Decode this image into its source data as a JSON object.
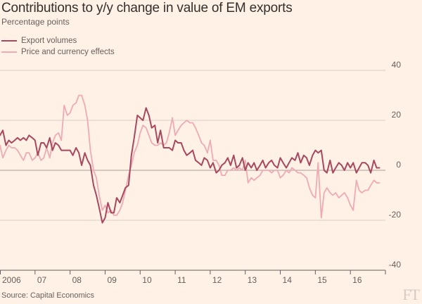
{
  "title": "Contributions to y/y change in value of EM exports",
  "subtitle": "Percentage points",
  "source": "Source: Capital Economics",
  "brand": "FT",
  "colors": {
    "background": "#fff1e5",
    "export_volumes": "#a8485f",
    "price_effects": "#efaab3",
    "grid": "#d9cfc6",
    "zero_line": "#a89f98"
  },
  "chart_data": {
    "type": "line",
    "title": "Contributions to y/y change in value of EM exports",
    "ylabel": "Percentage points",
    "xlabel": "",
    "ylim": [
      -40,
      40
    ],
    "yticks": [
      40,
      20,
      0,
      -20,
      -40
    ],
    "xlim": [
      2006.0,
      2017.0
    ],
    "xtick_labels": [
      "2006",
      "07",
      "08",
      "09",
      "10",
      "11",
      "12",
      "13",
      "14",
      "15",
      "16"
    ],
    "grid": true,
    "legend_position": "top-left",
    "series": [
      {
        "name": "Export volumes",
        "color": "#a8485f",
        "points": [
          [
            2006.0,
            14
          ],
          [
            2006.08,
            16
          ],
          [
            2006.17,
            10
          ],
          [
            2006.25,
            12
          ],
          [
            2006.33,
            11
          ],
          [
            2006.42,
            12
          ],
          [
            2006.5,
            13
          ],
          [
            2006.58,
            12
          ],
          [
            2006.67,
            13
          ],
          [
            2006.75,
            12
          ],
          [
            2006.83,
            14
          ],
          [
            2006.92,
            13
          ],
          [
            2007.0,
            12
          ],
          [
            2007.08,
            6
          ],
          [
            2007.17,
            11
          ],
          [
            2007.25,
            11
          ],
          [
            2007.33,
            9
          ],
          [
            2007.42,
            13
          ],
          [
            2007.5,
            8
          ],
          [
            2007.58,
            11
          ],
          [
            2007.67,
            10
          ],
          [
            2007.75,
            8
          ],
          [
            2007.83,
            8
          ],
          [
            2007.92,
            8
          ],
          [
            2008.0,
            8
          ],
          [
            2008.08,
            6
          ],
          [
            2008.17,
            9
          ],
          [
            2008.25,
            7
          ],
          [
            2008.33,
            2
          ],
          [
            2008.42,
            7
          ],
          [
            2008.5,
            4
          ],
          [
            2008.58,
            2
          ],
          [
            2008.67,
            -6
          ],
          [
            2008.75,
            -10
          ],
          [
            2008.83,
            -15
          ],
          [
            2008.92,
            -21
          ],
          [
            2009.0,
            -19
          ],
          [
            2009.08,
            -13
          ],
          [
            2009.17,
            -17
          ],
          [
            2009.25,
            -17
          ],
          [
            2009.33,
            -11
          ],
          [
            2009.42,
            -13
          ],
          [
            2009.5,
            -10
          ],
          [
            2009.58,
            -7
          ],
          [
            2009.67,
            -6
          ],
          [
            2009.75,
            6
          ],
          [
            2009.83,
            13
          ],
          [
            2009.92,
            22
          ],
          [
            2010.0,
            21
          ],
          [
            2010.08,
            20
          ],
          [
            2010.17,
            25
          ],
          [
            2010.25,
            22
          ],
          [
            2010.33,
            17
          ],
          [
            2010.42,
            18
          ],
          [
            2010.5,
            11
          ],
          [
            2010.58,
            16
          ],
          [
            2010.67,
            9
          ],
          [
            2010.75,
            9
          ],
          [
            2010.83,
            9
          ],
          [
            2010.92,
            8
          ],
          [
            2011.0,
            12
          ],
          [
            2011.08,
            11
          ],
          [
            2011.17,
            11
          ],
          [
            2011.25,
            8
          ],
          [
            2011.33,
            6
          ],
          [
            2011.42,
            7
          ],
          [
            2011.5,
            8
          ],
          [
            2011.58,
            4
          ],
          [
            2011.67,
            3
          ],
          [
            2011.75,
            2
          ],
          [
            2011.83,
            5
          ],
          [
            2011.92,
            4
          ],
          [
            2012.0,
            1
          ],
          [
            2012.08,
            3
          ],
          [
            2012.17,
            -1
          ],
          [
            2012.25,
            0
          ],
          [
            2012.33,
            2
          ],
          [
            2012.42,
            3
          ],
          [
            2012.5,
            5
          ],
          [
            2012.58,
            2
          ],
          [
            2012.67,
            6
          ],
          [
            2012.75,
            1
          ],
          [
            2012.83,
            2
          ],
          [
            2012.92,
            5
          ],
          [
            2013.0,
            0
          ],
          [
            2013.08,
            3
          ],
          [
            2013.17,
            1
          ],
          [
            2013.25,
            3
          ],
          [
            2013.33,
            0
          ],
          [
            2013.42,
            2
          ],
          [
            2013.5,
            4
          ],
          [
            2013.58,
            1
          ],
          [
            2013.67,
            3
          ],
          [
            2013.75,
            4
          ],
          [
            2013.83,
            2
          ],
          [
            2013.92,
            1
          ],
          [
            2014.0,
            5
          ],
          [
            2014.08,
            3
          ],
          [
            2014.17,
            1
          ],
          [
            2014.25,
            3
          ],
          [
            2014.33,
            5
          ],
          [
            2014.42,
            4
          ],
          [
            2014.5,
            7
          ],
          [
            2014.58,
            3
          ],
          [
            2014.67,
            6
          ],
          [
            2014.75,
            5
          ],
          [
            2014.83,
            2
          ],
          [
            2014.92,
            6
          ],
          [
            2015.0,
            8
          ],
          [
            2015.08,
            7
          ],
          [
            2015.17,
            8
          ],
          [
            2015.25,
            0
          ],
          [
            2015.33,
            -1
          ],
          [
            2015.42,
            4
          ],
          [
            2015.5,
            -1
          ],
          [
            2015.58,
            1
          ],
          [
            2015.67,
            3
          ],
          [
            2015.75,
            2
          ],
          [
            2015.83,
            0
          ],
          [
            2015.92,
            3
          ],
          [
            2016.0,
            1
          ],
          [
            2016.08,
            3
          ],
          [
            2016.17,
            -1
          ],
          [
            2016.25,
            1
          ],
          [
            2016.33,
            3
          ],
          [
            2016.42,
            3
          ],
          [
            2016.5,
            2
          ],
          [
            2016.58,
            -1
          ],
          [
            2016.67,
            4
          ],
          [
            2016.75,
            1
          ],
          [
            2016.83,
            1
          ]
        ]
      },
      {
        "name": "Price and currency effects",
        "color": "#efaab3",
        "points": [
          [
            2006.0,
            10
          ],
          [
            2006.08,
            5
          ],
          [
            2006.17,
            8
          ],
          [
            2006.25,
            10
          ],
          [
            2006.33,
            9
          ],
          [
            2006.42,
            9
          ],
          [
            2006.5,
            8
          ],
          [
            2006.58,
            6
          ],
          [
            2006.67,
            4
          ],
          [
            2006.75,
            7
          ],
          [
            2006.83,
            7
          ],
          [
            2006.92,
            4
          ],
          [
            2007.0,
            5
          ],
          [
            2007.08,
            7
          ],
          [
            2007.17,
            4
          ],
          [
            2007.25,
            5
          ],
          [
            2007.33,
            9
          ],
          [
            2007.42,
            5
          ],
          [
            2007.5,
            11
          ],
          [
            2007.58,
            14
          ],
          [
            2007.67,
            15
          ],
          [
            2007.75,
            12
          ],
          [
            2007.83,
            26
          ],
          [
            2007.92,
            22
          ],
          [
            2008.0,
            23
          ],
          [
            2008.08,
            26
          ],
          [
            2008.17,
            27
          ],
          [
            2008.25,
            30
          ],
          [
            2008.33,
            30
          ],
          [
            2008.42,
            26
          ],
          [
            2008.5,
            20
          ],
          [
            2008.58,
            8
          ],
          [
            2008.67,
            0
          ],
          [
            2008.75,
            -3
          ],
          [
            2008.83,
            -10
          ],
          [
            2008.92,
            -16
          ],
          [
            2009.0,
            -14
          ],
          [
            2009.08,
            -17
          ],
          [
            2009.17,
            -16
          ],
          [
            2009.25,
            -18
          ],
          [
            2009.33,
            -18
          ],
          [
            2009.42,
            -16
          ],
          [
            2009.5,
            -13
          ],
          [
            2009.58,
            -8
          ],
          [
            2009.67,
            -2
          ],
          [
            2009.75,
            2
          ],
          [
            2009.83,
            7
          ],
          [
            2009.92,
            10
          ],
          [
            2010.0,
            15
          ],
          [
            2010.08,
            18
          ],
          [
            2010.17,
            17
          ],
          [
            2010.25,
            14
          ],
          [
            2010.33,
            11
          ],
          [
            2010.42,
            10
          ],
          [
            2010.5,
            10
          ],
          [
            2010.58,
            11
          ],
          [
            2010.67,
            10
          ],
          [
            2010.75,
            11
          ],
          [
            2010.83,
            15
          ],
          [
            2010.92,
            21
          ],
          [
            2011.0,
            14
          ],
          [
            2011.08,
            16
          ],
          [
            2011.17,
            18
          ],
          [
            2011.25,
            19
          ],
          [
            2011.33,
            20
          ],
          [
            2011.42,
            19
          ],
          [
            2011.5,
            19
          ],
          [
            2011.58,
            17
          ],
          [
            2011.67,
            14
          ],
          [
            2011.75,
            11
          ],
          [
            2011.83,
            10
          ],
          [
            2011.92,
            7
          ],
          [
            2012.0,
            12
          ],
          [
            2012.08,
            4
          ],
          [
            2012.17,
            4
          ],
          [
            2012.25,
            2
          ],
          [
            2012.33,
            -2
          ],
          [
            2012.42,
            -2
          ],
          [
            2012.5,
            0
          ],
          [
            2012.58,
            0
          ],
          [
            2012.67,
            1
          ],
          [
            2012.75,
            0
          ],
          [
            2012.83,
            1
          ],
          [
            2012.92,
            0
          ],
          [
            2013.0,
            4
          ],
          [
            2013.08,
            -5
          ],
          [
            2013.17,
            -3
          ],
          [
            2013.25,
            -4
          ],
          [
            2013.33,
            -3
          ],
          [
            2013.42,
            -2
          ],
          [
            2013.5,
            0
          ],
          [
            2013.58,
            0
          ],
          [
            2013.67,
            0
          ],
          [
            2013.75,
            -1
          ],
          [
            2013.83,
            0
          ],
          [
            2013.92,
            0
          ],
          [
            2014.0,
            -3
          ],
          [
            2014.08,
            -2
          ],
          [
            2014.17,
            0
          ],
          [
            2014.25,
            -1
          ],
          [
            2014.33,
            1
          ],
          [
            2014.42,
            0
          ],
          [
            2014.5,
            -1
          ],
          [
            2014.58,
            -1
          ],
          [
            2014.67,
            -2
          ],
          [
            2014.75,
            -3
          ],
          [
            2014.83,
            -7
          ],
          [
            2014.92,
            -10
          ],
          [
            2015.0,
            -11
          ],
          [
            2015.08,
            3
          ],
          [
            2015.17,
            -19
          ],
          [
            2015.25,
            -9
          ],
          [
            2015.33,
            -7
          ],
          [
            2015.42,
            -9
          ],
          [
            2015.5,
            -10
          ],
          [
            2015.58,
            -9
          ],
          [
            2015.67,
            -11
          ],
          [
            2015.75,
            -10
          ],
          [
            2015.83,
            -9
          ],
          [
            2015.92,
            -11
          ],
          [
            2016.0,
            -14
          ],
          [
            2016.08,
            -16
          ],
          [
            2016.17,
            -4
          ],
          [
            2016.25,
            -8
          ],
          [
            2016.33,
            -9
          ],
          [
            2016.42,
            -8
          ],
          [
            2016.5,
            -8
          ],
          [
            2016.58,
            -6
          ],
          [
            2016.67,
            -4
          ],
          [
            2016.75,
            -5
          ],
          [
            2016.83,
            -5
          ]
        ]
      }
    ]
  }
}
